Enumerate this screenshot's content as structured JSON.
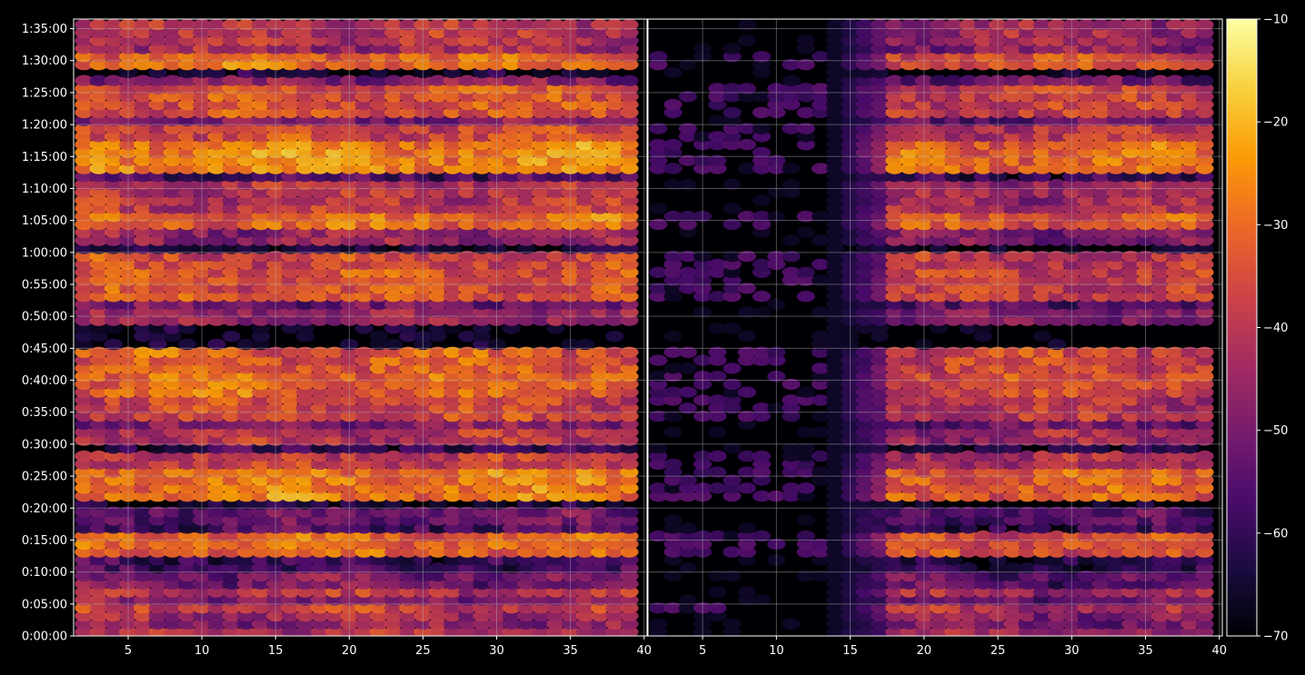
{
  "chart_data": {
    "type": "heatmap",
    "title": "",
    "xlabel": "",
    "ylabel": "",
    "panels": [
      {
        "name": "",
        "x_ticks": [
          "5",
          "10",
          "15",
          "20",
          "25",
          "30",
          "35",
          "40"
        ],
        "x_tick_values": [
          5,
          10,
          15,
          20,
          25,
          30,
          35,
          40
        ],
        "xlim": [
          1.3,
          40.2
        ],
        "columns": [
          2,
          39
        ]
      },
      {
        "name": "",
        "x_ticks": [
          "5",
          "10",
          "15",
          "20",
          "25",
          "30",
          "35",
          "40"
        ],
        "x_tick_values": [
          5,
          10,
          15,
          20,
          25,
          30,
          35,
          40
        ],
        "xlim": [
          1.3,
          40.2
        ],
        "columns": [
          2,
          39
        ]
      }
    ],
    "y_ticks": [
      "0:00:00",
      "0:05:00",
      "0:10:00",
      "0:15:00",
      "0:20:00",
      "0:25:00",
      "0:30:00",
      "0:35:00",
      "0:40:00",
      "0:45:00",
      "0:50:00",
      "0:55:00",
      "1:00:00",
      "1:05:00",
      "1:10:00",
      "1:15:00",
      "1:20:00",
      "1:25:00",
      "1:30:00",
      "1:35:00"
    ],
    "y_tick_values": [
      0,
      5,
      10,
      15,
      20,
      25,
      30,
      35,
      40,
      45,
      50,
      55,
      60,
      65,
      70,
      75,
      80,
      85,
      90,
      95
    ],
    "ylim": [
      0,
      96.5
    ],
    "row_interval_minutes": 1.25,
    "colorbar": {
      "ticks": [
        "−10",
        "−20",
        "−30",
        "−40",
        "−50",
        "−60",
        "−70"
      ],
      "tick_values": [
        -10,
        -20,
        -30,
        -40,
        -50,
        -60,
        -70
      ],
      "range": [
        -70,
        -10
      ],
      "colormap": "inferno"
    },
    "grid": true,
    "band_profile_minutes_left": [
      [
        0,
        1,
        -42
      ],
      [
        1,
        2,
        -46
      ],
      [
        2,
        4,
        -44
      ],
      [
        4,
        5.5,
        -38
      ],
      [
        5.5,
        6.5,
        -48
      ],
      [
        6.5,
        8,
        -40
      ],
      [
        8,
        10,
        -50
      ],
      [
        10,
        10.5,
        -36
      ],
      [
        10.5,
        12,
        -58
      ],
      [
        12,
        16,
        -30
      ],
      [
        16,
        18,
        -56
      ],
      [
        18,
        20,
        -52
      ],
      [
        20,
        21.5,
        -66
      ],
      [
        21.5,
        26,
        -28
      ],
      [
        26,
        29,
        -38
      ],
      [
        29,
        30,
        -60
      ],
      [
        30,
        33,
        -40
      ],
      [
        33,
        34,
        -48
      ],
      [
        34,
        38,
        -36
      ],
      [
        38,
        41,
        -30
      ],
      [
        41,
        45.5,
        -32
      ],
      [
        45.5,
        48.5,
        -68
      ],
      [
        48.5,
        51,
        -44
      ],
      [
        51,
        53,
        -52
      ],
      [
        53,
        57,
        -34
      ],
      [
        57,
        58,
        -50
      ],
      [
        58,
        60.5,
        -36
      ],
      [
        60.5,
        61.5,
        -66
      ],
      [
        61.5,
        64,
        -46
      ],
      [
        64,
        66,
        -30
      ],
      [
        66,
        71,
        -40
      ],
      [
        71,
        73,
        -56
      ],
      [
        73,
        77,
        -26
      ],
      [
        77,
        80,
        -36
      ],
      [
        80,
        81,
        -48
      ],
      [
        81,
        86,
        -34
      ],
      [
        86,
        88,
        -48
      ],
      [
        88,
        88.5,
        -66
      ],
      [
        88.5,
        91,
        -30
      ],
      [
        91,
        93,
        -44
      ],
      [
        93,
        96.5,
        -40
      ]
    ],
    "right_panel_active_from_x": 18,
    "right_panel_faint_level": -66,
    "color_scale": [
      "#000004",
      "#1b0c41",
      "#4a0c6b",
      "#781c6d",
      "#a52c60",
      "#cf4446",
      "#ed6925",
      "#fb9b06",
      "#f7d13d",
      "#fcffa4"
    ]
  }
}
